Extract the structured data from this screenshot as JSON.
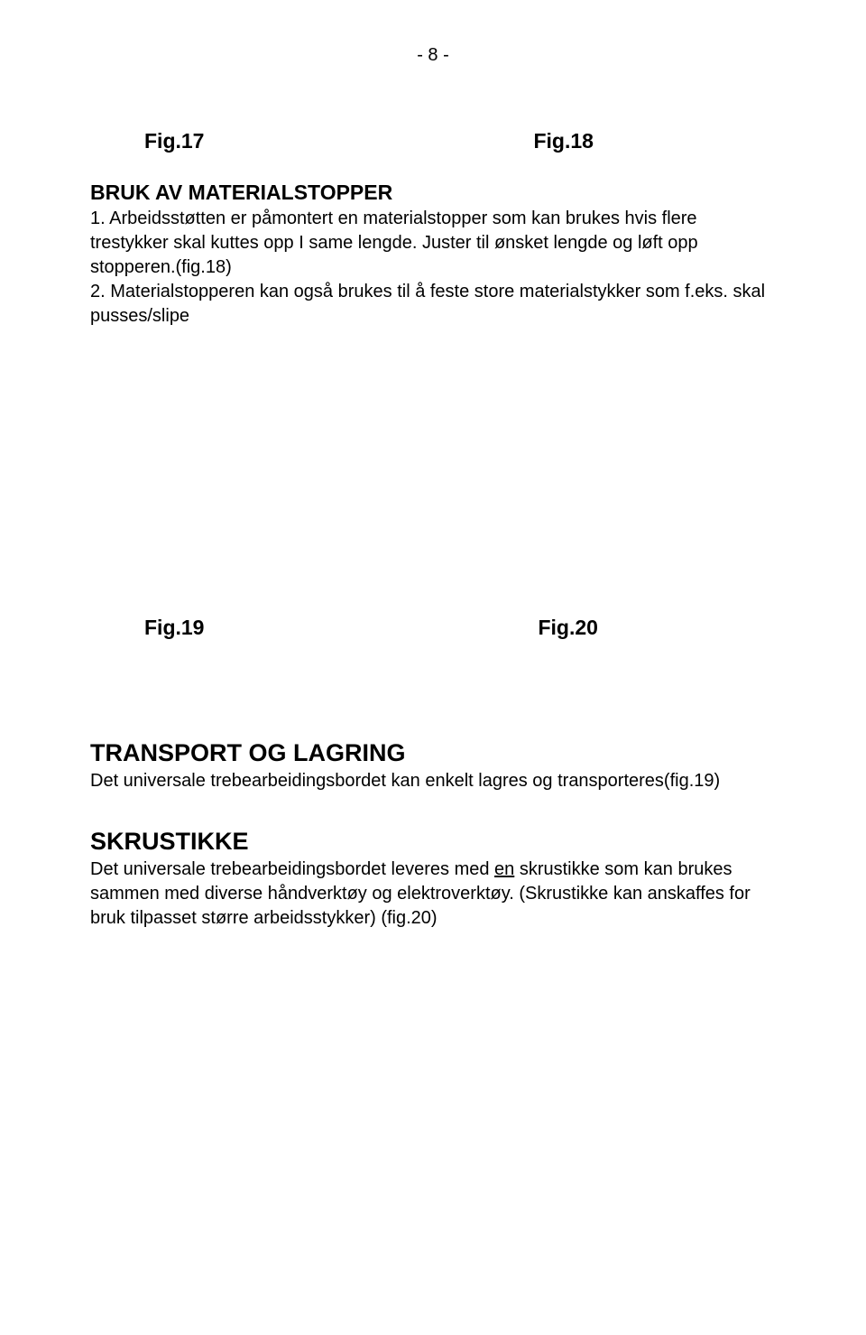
{
  "page": {
    "number": "- 8 -"
  },
  "figs": {
    "f17": "Fig.17",
    "f18": "Fig.18",
    "f19": "Fig.19",
    "f20": "Fig.20"
  },
  "section1": {
    "heading": "BRUK AV MATERIALSTOPPER",
    "para1": "1. Arbeidsstøtten er påmontert en materialstopper som kan brukes hvis flere trestykker skal kuttes opp I same lengde. Juster til ønsket lengde og løft opp stopperen.(fig.18)",
    "para2": "2. Materialstopperen kan også brukes til å feste store materialstykker som f.eks. skal pusses/slipe"
  },
  "section2": {
    "heading": "TRANSPORT OG LAGRING",
    "para": "Det universale trebearbeidingsbordet kan enkelt lagres og transporteres(fig.19)"
  },
  "section3": {
    "heading": "SKRUSTIKKE",
    "para_before": "Det universale trebearbeidingsbordet leveres med ",
    "para_underline": "en",
    "para_after": " skrustikke som kan brukes sammen med diverse håndverktøy og elektroverktøy. (Skrustikke kan anskaffes for bruk tilpasset større arbeidsstykker) (fig.20)"
  },
  "colors": {
    "background": "#ffffff",
    "text": "#000000"
  },
  "typography": {
    "body_fontsize": 20,
    "heading_fontsize": 23,
    "large_heading_fontsize": 27,
    "font_family": "Arial"
  }
}
